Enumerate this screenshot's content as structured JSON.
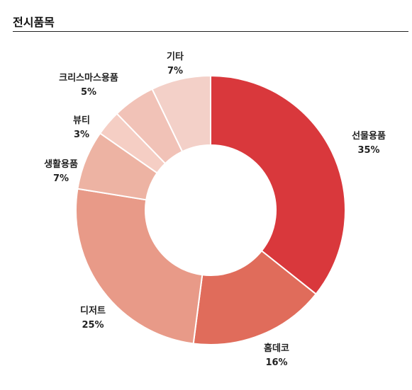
{
  "section": {
    "title": "전시품목"
  },
  "chart_data": {
    "type": "pie",
    "variant": "donut",
    "slices": [
      {
        "label": "선물용품",
        "value": 35,
        "value_text": "35%",
        "color": "#d9383c"
      },
      {
        "label": "홈데코",
        "value": 16,
        "value_text": "16%",
        "color": "#e06c5b"
      },
      {
        "label": "디저트",
        "value": 25,
        "value_text": "25%",
        "color": "#e89a88"
      },
      {
        "label": "생활용품",
        "value": 7,
        "value_text": "7%",
        "color": "#edb3a3"
      },
      {
        "label": "뷰티",
        "value": 3,
        "value_text": "3%",
        "color": "#f5cec4"
      },
      {
        "label": "크리스마스용품",
        "value": 5,
        "value_text": "5%",
        "color": "#f1c2b7"
      },
      {
        "label": "기타",
        "value": 7,
        "value_text": "7%",
        "color": "#f3d0c8"
      }
    ],
    "start_angle": "top, clockwise",
    "legend": "none (labels placed outside slices)"
  }
}
